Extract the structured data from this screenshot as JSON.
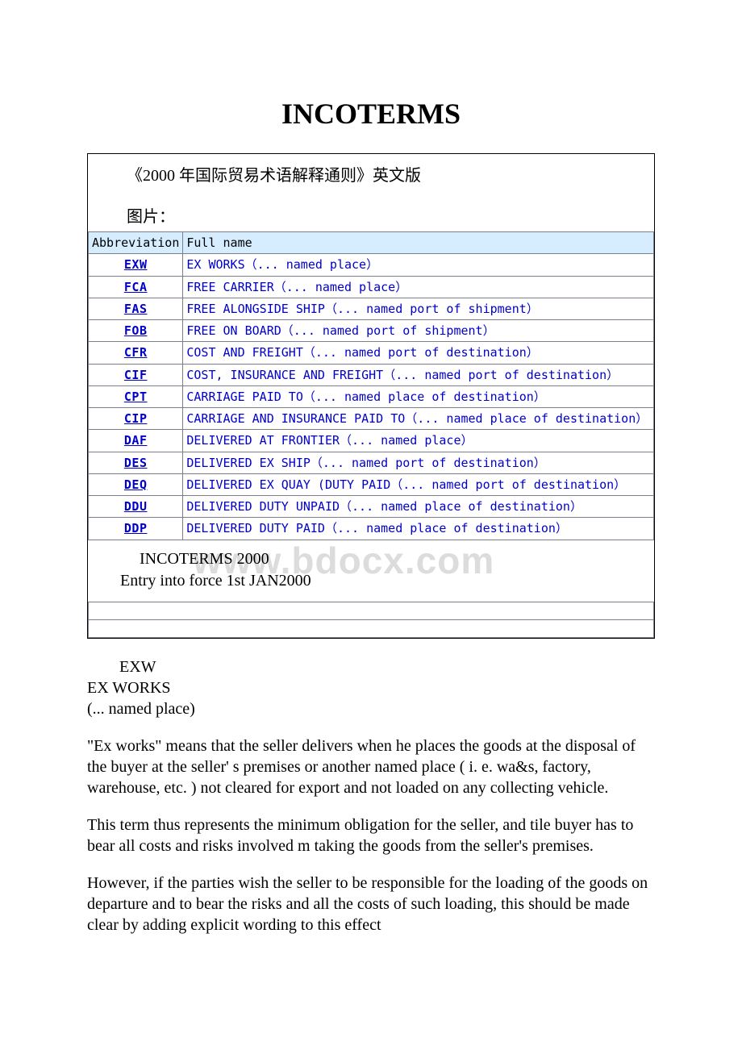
{
  "title": "INCOTERMS",
  "intro": "《2000 年国际贸易术语解释通则》英文版",
  "picLabel": "图片：",
  "table": {
    "header": {
      "abbr": "Abbreviation",
      "full": "Full name"
    },
    "header_bg": "#d6ecff",
    "border_color": "#7b7f8e",
    "link_color": "#0000cc",
    "abbr_col_width": 98,
    "fontsize": 15,
    "rows": [
      {
        "abbr": "EXW",
        "full": "EX WORKS（... named place）"
      },
      {
        "abbr": "FCA",
        "full": "FREE CARRIER（... named place）"
      },
      {
        "abbr": "FAS",
        "full": "FREE ALONGSIDE SHIP（... named port of shipment）"
      },
      {
        "abbr": "FOB",
        "full": "FREE ON BOARD（... named port of shipment）"
      },
      {
        "abbr": "CFR",
        "full": "COST AND FREIGHT（... named port of destination）"
      },
      {
        "abbr": "CIF",
        "full": "COST, INSURANCE AND FREIGHT（... named port of destination）"
      },
      {
        "abbr": "CPT",
        "full": "CARRIAGE PAID TO（... named place of destination）"
      },
      {
        "abbr": "CIP",
        "full": "CARRIAGE AND INSURANCE  PAID TO（... named place of destination）"
      },
      {
        "abbr": "DAF",
        "full": "DELIVERED AT FRONTIER（... named place）"
      },
      {
        "abbr": "DES",
        "full": "DELIVERED EX SHIP（... named port of destination）"
      },
      {
        "abbr": "DEQ",
        "full": "DELIVERED EX QUAY (DUTY PAID（... named port of destination）"
      },
      {
        "abbr": "DDU",
        "full": "DELIVERED DUTY UNPAID（... named place of destination）"
      },
      {
        "abbr": "DDP",
        "full": "DELIVERED DUTY PAID（... named place of destination）"
      }
    ]
  },
  "afterTable": {
    "line1": "INCOTERMS 2000",
    "line2": "Entry into force 1st JAN2000"
  },
  "watermark": "www.bdocx.com",
  "body": {
    "h1": "EXW",
    "h2": "EX WORKS",
    "h3": "(... named place)",
    "p1": "\"Ex works\" means that the seller delivers when he places the goods at the disposal of the buyer at the seller' s premises or another named place ( i. e. wa&s, factory, warehouse, etc. ) not cleared for export and not loaded on any collecting vehicle.",
    "p2": "This term thus represents the minimum obligation for the seller, and tile buyer has to bear all costs and risks involved m taking the goods from the seller's premises.",
    "p3": "However, if the parties wish the seller to be responsible for the loading of the goods on departure and to bear the risks and all the costs of such loading, this should be made clear by adding explicit wording to this effect"
  },
  "colors": {
    "text": "#000000",
    "link": "#0000cc",
    "header_bg": "#d6ecff",
    "border": "#7b7f8e",
    "watermark": "#dcdcdc",
    "background": "#ffffff"
  }
}
